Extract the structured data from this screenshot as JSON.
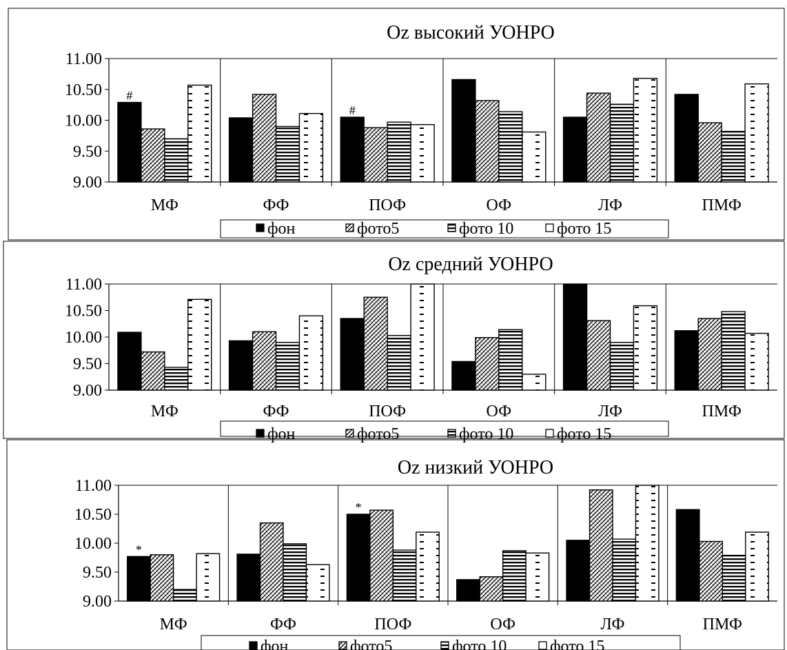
{
  "chart_data": [
    {
      "type": "bar",
      "title": "Oz высокий УОНРО",
      "categories": [
        "МФ",
        "ФФ",
        "ПОФ",
        "ОФ",
        "ЛФ",
        "ПМФ"
      ],
      "ylim": [
        9.0,
        11.0
      ],
      "yticks": [
        "11.00",
        "10.50",
        "10.00",
        "9.50",
        "9.00"
      ],
      "series": [
        {
          "name": "фон",
          "values": [
            10.29,
            10.04,
            10.05,
            10.66,
            10.05,
            10.42
          ]
        },
        {
          "name": "фото5",
          "values": [
            9.86,
            10.42,
            9.88,
            10.32,
            10.44,
            9.96
          ]
        },
        {
          "name": "фото 10",
          "values": [
            9.7,
            9.9,
            9.97,
            10.14,
            10.26,
            9.82
          ]
        },
        {
          "name": "фото 15",
          "values": [
            10.57,
            10.11,
            9.93,
            9.81,
            10.68,
            10.59
          ]
        }
      ],
      "annotations": [
        {
          "text": "#",
          "category": "МФ",
          "series": "фон"
        },
        {
          "text": "#",
          "category": "ПОФ",
          "series": "фон"
        }
      ],
      "legend": "bottom",
      "grid": "vertical category separators"
    },
    {
      "type": "bar",
      "title": "Oz средний УОНРО",
      "categories": [
        "МФ",
        "ФФ",
        "ПОФ",
        "ОФ",
        "ЛФ",
        "ПМФ"
      ],
      "ylim": [
        9.0,
        11.0
      ],
      "yticks": [
        "11.00",
        "10.50",
        "10.00",
        "9.50",
        "9.00"
      ],
      "series": [
        {
          "name": "фон",
          "values": [
            10.09,
            9.93,
            10.35,
            9.54,
            11.0,
            10.12
          ]
        },
        {
          "name": "фото5",
          "values": [
            9.72,
            10.1,
            10.75,
            9.99,
            10.31,
            10.35
          ]
        },
        {
          "name": "фото 10",
          "values": [
            9.43,
            9.9,
            10.03,
            10.14,
            9.9,
            10.48
          ]
        },
        {
          "name": "фото 15",
          "values": [
            10.71,
            10.4,
            11.0,
            9.3,
            10.59,
            10.07
          ]
        }
      ],
      "annotations": [],
      "legend": "bottom",
      "grid": "vertical category separators"
    },
    {
      "type": "bar",
      "title": "Oz низкий УОНРО",
      "categories": [
        "МФ",
        "ФФ",
        "ПОФ",
        "ОФ",
        "ЛФ",
        "ПМФ"
      ],
      "ylim": [
        9.0,
        11.0
      ],
      "yticks": [
        "11.00",
        "10.50",
        "10.00",
        "9.50",
        "9.00"
      ],
      "series": [
        {
          "name": "фон",
          "values": [
            9.77,
            9.81,
            10.5,
            9.37,
            10.05,
            10.58
          ]
        },
        {
          "name": "фото5",
          "values": [
            9.8,
            10.35,
            10.57,
            9.42,
            10.92,
            10.03
          ]
        },
        {
          "name": "фото 10",
          "values": [
            9.2,
            9.99,
            9.88,
            9.87,
            10.07,
            9.79
          ]
        },
        {
          "name": "фото 15",
          "values": [
            9.82,
            9.63,
            10.19,
            9.83,
            11.0,
            10.19
          ]
        }
      ],
      "annotations": [
        {
          "text": "*",
          "category": "МФ",
          "series": "фон"
        },
        {
          "text": "*",
          "category": "ПОФ",
          "series": "фон"
        }
      ],
      "legend": "bottom",
      "grid": "vertical category separators"
    }
  ]
}
